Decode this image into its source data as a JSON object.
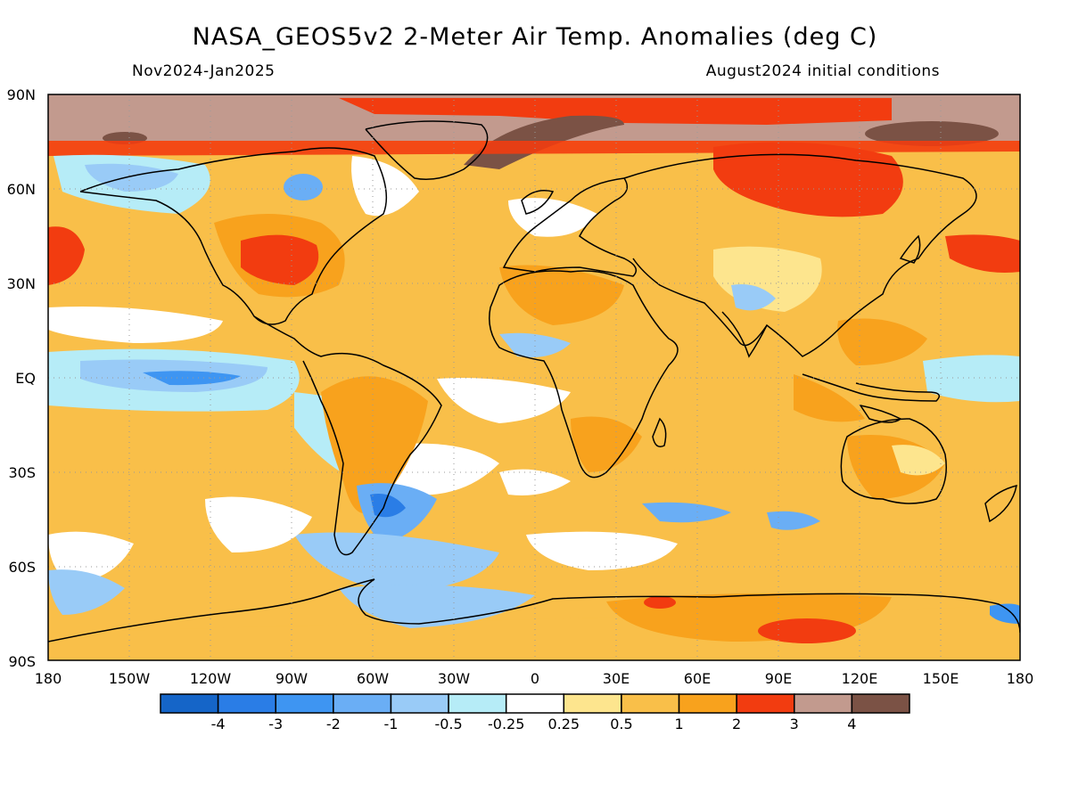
{
  "title": "NASA_GEOS5v2 2-Meter Air Temp. Anomalies (deg C)",
  "subtitle_left": "Nov2024-Jan2025",
  "subtitle_right": "August2024 initial conditions",
  "lat_labels": [
    "90N",
    "60N",
    "30N",
    "EQ",
    "30S",
    "60S",
    "90S"
  ],
  "lon_labels": [
    "180",
    "150W",
    "120W",
    "90W",
    "60W",
    "30W",
    "0",
    "30E",
    "60E",
    "90E",
    "120E",
    "150E",
    "180"
  ],
  "colorbar": {
    "colors": [
      "#1565c8",
      "#2a7de6",
      "#3e95f2",
      "#6aaef5",
      "#99cbf7",
      "#b6ecf7",
      "#ffffff",
      "#fde58e",
      "#f9bf49",
      "#f8a21d",
      "#f23c10",
      "#c29a8e",
      "#7b5245"
    ],
    "tick_labels": [
      "-4",
      "-3",
      "-2",
      "-1",
      "-0.5",
      "-0.25",
      "0.25",
      "0.5",
      "1",
      "2",
      "3",
      "4"
    ]
  }
}
